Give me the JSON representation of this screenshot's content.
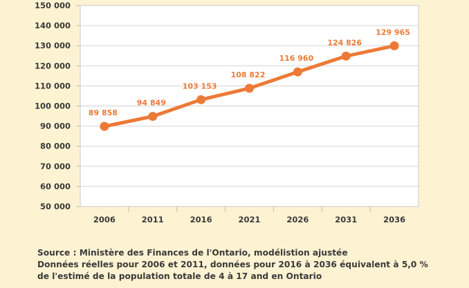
{
  "chart_data": {
    "type": "line",
    "categories": [
      "2006",
      "2011",
      "2016",
      "2021",
      "2026",
      "2031",
      "2036"
    ],
    "series": [
      {
        "values": [
          89858,
          94849,
          103153,
          108822,
          116960,
          124826,
          129965
        ],
        "value_labels": [
          "89 858",
          "94 849",
          "103 153",
          "108 822",
          "116 960",
          "124 826",
          "129 965"
        ],
        "color": "#ec7a37"
      }
    ],
    "ylim": [
      50000,
      150000
    ],
    "yticks": [
      50000,
      60000,
      70000,
      80000,
      90000,
      100000,
      110000,
      120000,
      130000,
      140000,
      150000
    ],
    "ytick_labels": [
      "50 000",
      "60 000",
      "70 000",
      "80 000",
      "90 000",
      "100 000",
      "110 000",
      "120 000",
      "130 000",
      "140 000",
      "150 000"
    ],
    "grid": true,
    "xlabel": "",
    "ylabel": "",
    "title": ""
  },
  "source": {
    "line1": "Source : Ministère des Finances de l'Ontario, modélistion ajustée",
    "line2": "Données réelles pour 2006 et 2011, données pour 2016 à 2036 équivalent à 5,0 %",
    "line3": "de l'estimé de la population totale de 4 à 17 and en Ontario"
  },
  "colors": {
    "background": "#fdf3d2",
    "plot_area": "#ffffff",
    "line": "#ec7a37",
    "text": "#3a3a3a",
    "grid": "#cfcfcf"
  }
}
